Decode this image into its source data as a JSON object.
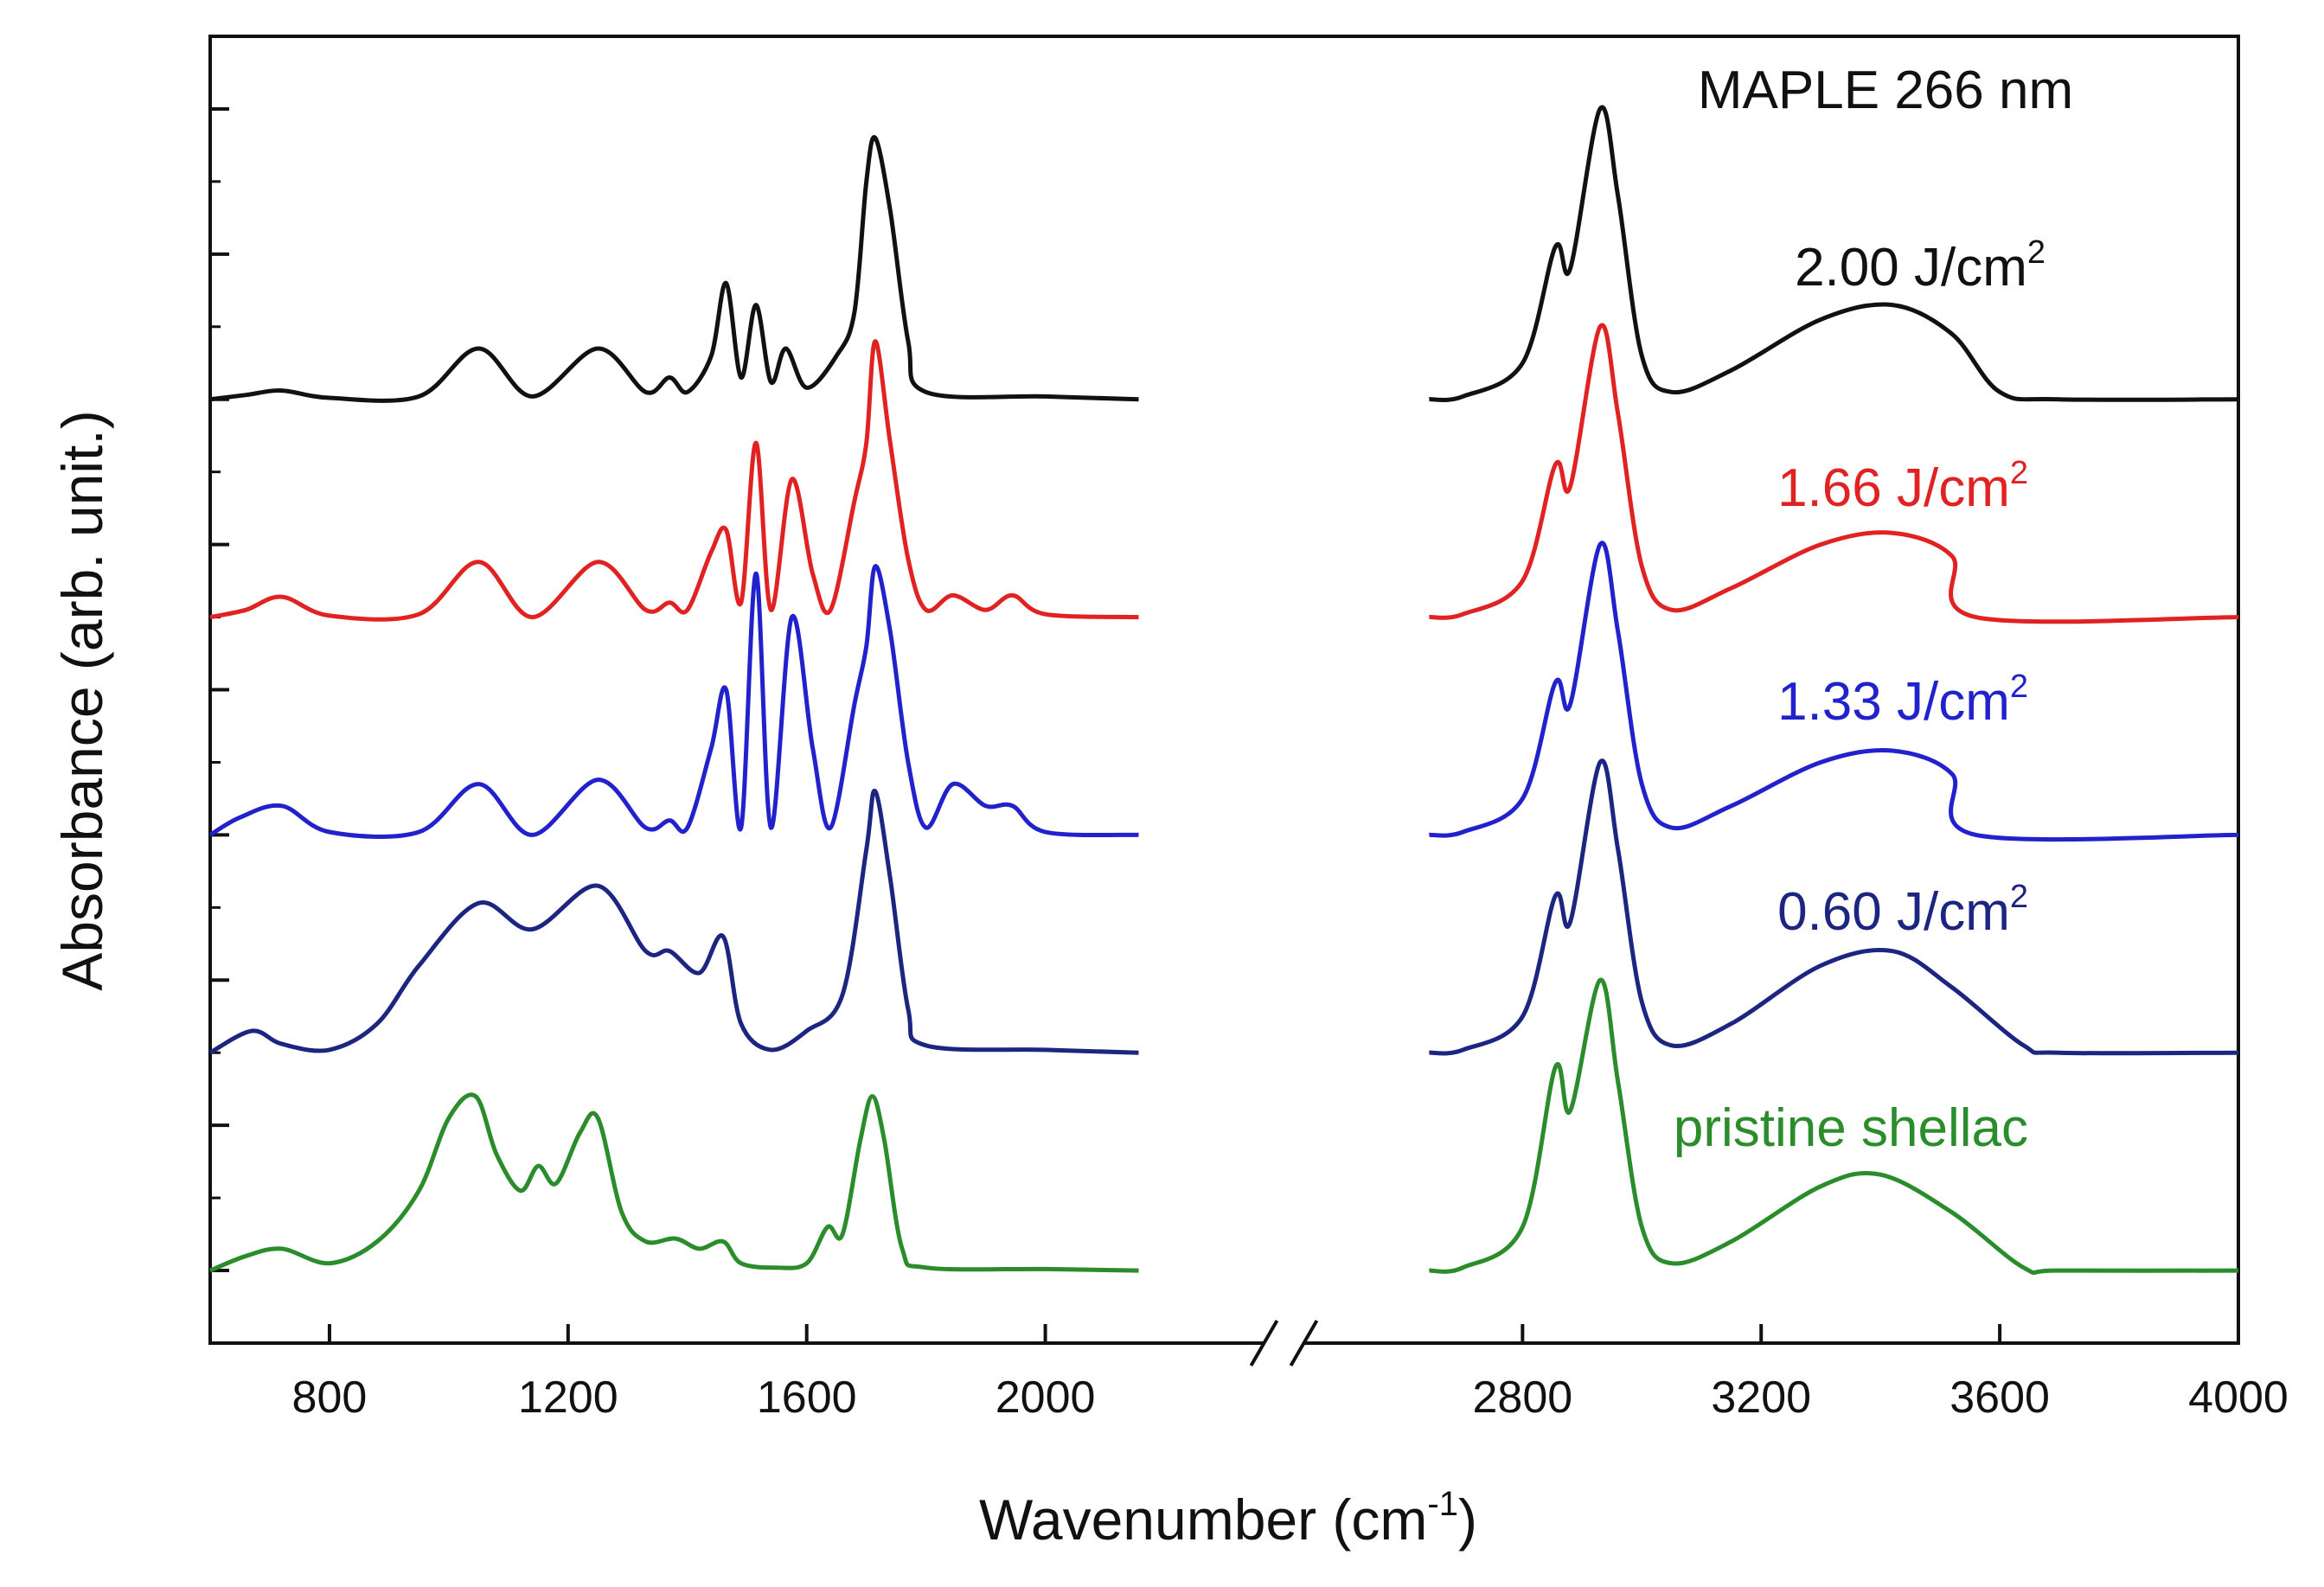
{
  "chart_data": {
    "type": "line",
    "title": "MAPLE 266 nm",
    "xlabel": "Wavenumber (cm",
    "xlabel_sup": "-1",
    "xlabel_tail": ")",
    "ylabel": "Absorbance (arb. unit.)",
    "x_range": [
      600,
      4000
    ],
    "axis_break": [
      2200,
      2600
    ],
    "x_ticks": [
      {
        "value": 800,
        "label": "800"
      },
      {
        "value": 1200,
        "label": "1200"
      },
      {
        "value": 1600,
        "label": "1600"
      },
      {
        "value": 2000,
        "label": "2000"
      },
      {
        "value": 2800,
        "label": "2800"
      },
      {
        "value": 3200,
        "label": "3200"
      },
      {
        "value": 3600,
        "label": "3600"
      },
      {
        "value": 4000,
        "label": "4000"
      }
    ],
    "y_range": [
      -0.5,
      8.5
    ],
    "grid": false,
    "series": [
      {
        "name": "2.00 J/cm",
        "sup": "2",
        "color": "#111111",
        "offset": 6,
        "points": [
          [
            600,
            0
          ],
          [
            660,
            0.03
          ],
          [
            720,
            0.06
          ],
          [
            800,
            0.01
          ],
          [
            950,
            0.02
          ],
          [
            1050,
            0.35
          ],
          [
            1140,
            0.02
          ],
          [
            1250,
            0.35
          ],
          [
            1330,
            0.05
          ],
          [
            1370,
            0.15
          ],
          [
            1400,
            0.05
          ],
          [
            1440,
            0.3
          ],
          [
            1465,
            0.8
          ],
          [
            1490,
            0.15
          ],
          [
            1515,
            0.65
          ],
          [
            1540,
            0.12
          ],
          [
            1565,
            0.35
          ],
          [
            1600,
            0.08
          ],
          [
            1650,
            0.3
          ],
          [
            1680,
            0.6
          ],
          [
            1700,
            1.5
          ],
          [
            1715,
            1.8
          ],
          [
            1740,
            1.3
          ],
          [
            1770,
            0.4
          ],
          [
            1800,
            0.05
          ],
          [
            2000,
            0.02
          ],
          [
            2200,
            0
          ],
          [
            2600,
            0
          ],
          [
            2700,
            0.02
          ],
          [
            2800,
            0.25
          ],
          [
            2855,
            1.05
          ],
          [
            2880,
            0.9
          ],
          [
            2930,
            2.0
          ],
          [
            2960,
            1.4
          ],
          [
            3000,
            0.3
          ],
          [
            3050,
            0.05
          ],
          [
            3150,
            0.2
          ],
          [
            3300,
            0.55
          ],
          [
            3420,
            0.65
          ],
          [
            3520,
            0.45
          ],
          [
            3600,
            0.05
          ],
          [
            3700,
            0
          ],
          [
            4000,
            0
          ]
        ]
      },
      {
        "name": "1.66 J/cm",
        "sup": "2",
        "color": "#e02222",
        "offset": 4.5,
        "points": [
          [
            600,
            0
          ],
          [
            660,
            0.05
          ],
          [
            720,
            0.14
          ],
          [
            800,
            0.01
          ],
          [
            950,
            0.02
          ],
          [
            1050,
            0.38
          ],
          [
            1140,
            0
          ],
          [
            1250,
            0.38
          ],
          [
            1330,
            0.05
          ],
          [
            1370,
            0.1
          ],
          [
            1400,
            0.05
          ],
          [
            1440,
            0.45
          ],
          [
            1465,
            0.6
          ],
          [
            1490,
            0.1
          ],
          [
            1515,
            1.2
          ],
          [
            1540,
            0.05
          ],
          [
            1575,
            0.95
          ],
          [
            1610,
            0.3
          ],
          [
            1640,
            0.05
          ],
          [
            1680,
            0.8
          ],
          [
            1700,
            1.2
          ],
          [
            1715,
            1.9
          ],
          [
            1740,
            1.2
          ],
          [
            1770,
            0.4
          ],
          [
            1800,
            0.05
          ],
          [
            1845,
            0.15
          ],
          [
            1900,
            0.05
          ],
          [
            1945,
            0.15
          ],
          [
            2000,
            0.02
          ],
          [
            2200,
            0
          ],
          [
            2600,
            0
          ],
          [
            2700,
            0.02
          ],
          [
            2800,
            0.25
          ],
          [
            2855,
            1.05
          ],
          [
            2880,
            0.9
          ],
          [
            2930,
            2.0
          ],
          [
            2960,
            1.4
          ],
          [
            3000,
            0.35
          ],
          [
            3050,
            0.05
          ],
          [
            3150,
            0.2
          ],
          [
            3300,
            0.5
          ],
          [
            3420,
            0.58
          ],
          [
            3520,
            0.42
          ],
          [
            3560,
            0
          ],
          [
            4000,
            0
          ]
        ]
      },
      {
        "name": "1.33 J/cm",
        "sup": "2",
        "color": "#2222cc",
        "offset": 3,
        "points": [
          [
            600,
            0
          ],
          [
            650,
            0.12
          ],
          [
            720,
            0.2
          ],
          [
            800,
            0.02
          ],
          [
            950,
            0.02
          ],
          [
            1050,
            0.35
          ],
          [
            1140,
            0
          ],
          [
            1250,
            0.38
          ],
          [
            1330,
            0.05
          ],
          [
            1370,
            0.1
          ],
          [
            1400,
            0.05
          ],
          [
            1440,
            0.6
          ],
          [
            1465,
            1.0
          ],
          [
            1490,
            0.05
          ],
          [
            1515,
            1.8
          ],
          [
            1540,
            0.05
          ],
          [
            1575,
            1.5
          ],
          [
            1610,
            0.6
          ],
          [
            1640,
            0.05
          ],
          [
            1680,
            0.9
          ],
          [
            1700,
            1.3
          ],
          [
            1715,
            1.85
          ],
          [
            1740,
            1.4
          ],
          [
            1770,
            0.5
          ],
          [
            1800,
            0.05
          ],
          [
            1845,
            0.35
          ],
          [
            1900,
            0.2
          ],
          [
            1945,
            0.2
          ],
          [
            2000,
            0.02
          ],
          [
            2200,
            0
          ],
          [
            2600,
            0
          ],
          [
            2700,
            0.02
          ],
          [
            2800,
            0.25
          ],
          [
            2855,
            1.05
          ],
          [
            2880,
            0.9
          ],
          [
            2930,
            2.0
          ],
          [
            2960,
            1.4
          ],
          [
            3000,
            0.35
          ],
          [
            3050,
            0.05
          ],
          [
            3150,
            0.2
          ],
          [
            3300,
            0.5
          ],
          [
            3420,
            0.58
          ],
          [
            3520,
            0.42
          ],
          [
            3560,
            0
          ],
          [
            4000,
            0
          ]
        ]
      },
      {
        "name": "0.60 J/cm",
        "sup": "2",
        "color": "#1c2580",
        "offset": 1.5,
        "points": [
          [
            600,
            0
          ],
          [
            670,
            0.15
          ],
          [
            720,
            0.06
          ],
          [
            800,
            0.02
          ],
          [
            880,
            0.2
          ],
          [
            950,
            0.6
          ],
          [
            1050,
            1.03
          ],
          [
            1140,
            0.85
          ],
          [
            1250,
            1.15
          ],
          [
            1330,
            0.7
          ],
          [
            1370,
            0.7
          ],
          [
            1420,
            0.55
          ],
          [
            1460,
            0.8
          ],
          [
            1490,
            0.2
          ],
          [
            1540,
            0.02
          ],
          [
            1600,
            0.15
          ],
          [
            1660,
            0.4
          ],
          [
            1700,
            1.4
          ],
          [
            1715,
            1.8
          ],
          [
            1740,
            1.2
          ],
          [
            1770,
            0.3
          ],
          [
            1800,
            0.05
          ],
          [
            2000,
            0.02
          ],
          [
            2200,
            0
          ],
          [
            2600,
            0
          ],
          [
            2700,
            0.02
          ],
          [
            2800,
            0.25
          ],
          [
            2855,
            1.08
          ],
          [
            2880,
            0.9
          ],
          [
            2930,
            2.0
          ],
          [
            2960,
            1.4
          ],
          [
            3000,
            0.35
          ],
          [
            3050,
            0.05
          ],
          [
            3150,
            0.2
          ],
          [
            3300,
            0.6
          ],
          [
            3420,
            0.7
          ],
          [
            3520,
            0.45
          ],
          [
            3640,
            0.05
          ],
          [
            3700,
            0
          ],
          [
            4000,
            0
          ]
        ]
      },
      {
        "name": "pristine shellac",
        "sup": "",
        "color": "#2a8c2a",
        "offset": 0,
        "points": [
          [
            600,
            0
          ],
          [
            660,
            0.1
          ],
          [
            720,
            0.15
          ],
          [
            800,
            0.05
          ],
          [
            880,
            0.2
          ],
          [
            950,
            0.55
          ],
          [
            1000,
            1.05
          ],
          [
            1045,
            1.2
          ],
          [
            1080,
            0.8
          ],
          [
            1120,
            0.55
          ],
          [
            1150,
            0.72
          ],
          [
            1180,
            0.6
          ],
          [
            1220,
            0.95
          ],
          [
            1250,
            1.05
          ],
          [
            1290,
            0.4
          ],
          [
            1330,
            0.2
          ],
          [
            1380,
            0.22
          ],
          [
            1420,
            0.15
          ],
          [
            1460,
            0.2
          ],
          [
            1490,
            0.05
          ],
          [
            1550,
            0.02
          ],
          [
            1600,
            0.05
          ],
          [
            1635,
            0.3
          ],
          [
            1660,
            0.25
          ],
          [
            1690,
            0.9
          ],
          [
            1710,
            1.2
          ],
          [
            1730,
            0.9
          ],
          [
            1760,
            0.15
          ],
          [
            1800,
            0.02
          ],
          [
            2000,
            0.01
          ],
          [
            2200,
            0
          ],
          [
            2600,
            0
          ],
          [
            2700,
            0.02
          ],
          [
            2800,
            0.3
          ],
          [
            2855,
            1.4
          ],
          [
            2880,
            1.1
          ],
          [
            2930,
            2.0
          ],
          [
            2960,
            1.3
          ],
          [
            3000,
            0.3
          ],
          [
            3050,
            0.05
          ],
          [
            3150,
            0.2
          ],
          [
            3300,
            0.58
          ],
          [
            3400,
            0.66
          ],
          [
            3520,
            0.4
          ],
          [
            3640,
            0.02
          ],
          [
            3700,
            0
          ],
          [
            4000,
            0
          ]
        ]
      }
    ]
  }
}
